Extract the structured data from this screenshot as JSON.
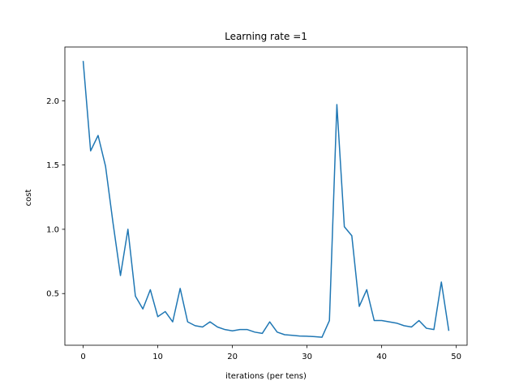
{
  "chart_data": {
    "type": "line",
    "title": "Learning rate =1",
    "xlabel": "iterations (per tens)",
    "ylabel": "cost",
    "xlim": [
      -2.45,
      51.45
    ],
    "ylim": [
      0.098,
      2.418
    ],
    "xticks": [
      0,
      10,
      20,
      30,
      40,
      50
    ],
    "yticks": [
      0.5,
      1.0,
      1.5,
      2.0
    ],
    "ytick_labels": [
      "0.5",
      "1.0",
      "1.5",
      "2.0"
    ],
    "grid": false,
    "series": [
      {
        "color": "#1f77b4",
        "x": [
          0,
          1,
          2,
          3,
          4,
          5,
          6,
          7,
          8,
          9,
          10,
          11,
          12,
          13,
          14,
          15,
          16,
          17,
          18,
          19,
          20,
          21,
          22,
          23,
          24,
          25,
          26,
          27,
          28,
          29,
          30,
          31,
          32,
          33,
          34,
          35,
          36,
          37,
          38,
          39,
          40,
          41,
          42,
          43,
          44,
          45,
          46,
          47,
          48,
          49
        ],
        "values": [
          2.31,
          1.61,
          1.73,
          1.49,
          1.05,
          0.64,
          1.0,
          0.48,
          0.38,
          0.53,
          0.32,
          0.36,
          0.28,
          0.54,
          0.28,
          0.25,
          0.24,
          0.28,
          0.24,
          0.22,
          0.21,
          0.22,
          0.22,
          0.2,
          0.19,
          0.28,
          0.2,
          0.18,
          0.175,
          0.17,
          0.168,
          0.165,
          0.16,
          0.29,
          1.97,
          1.02,
          0.95,
          0.4,
          0.53,
          0.29,
          0.29,
          0.28,
          0.27,
          0.25,
          0.24,
          0.29,
          0.23,
          0.22,
          0.59,
          0.21
        ]
      }
    ]
  }
}
